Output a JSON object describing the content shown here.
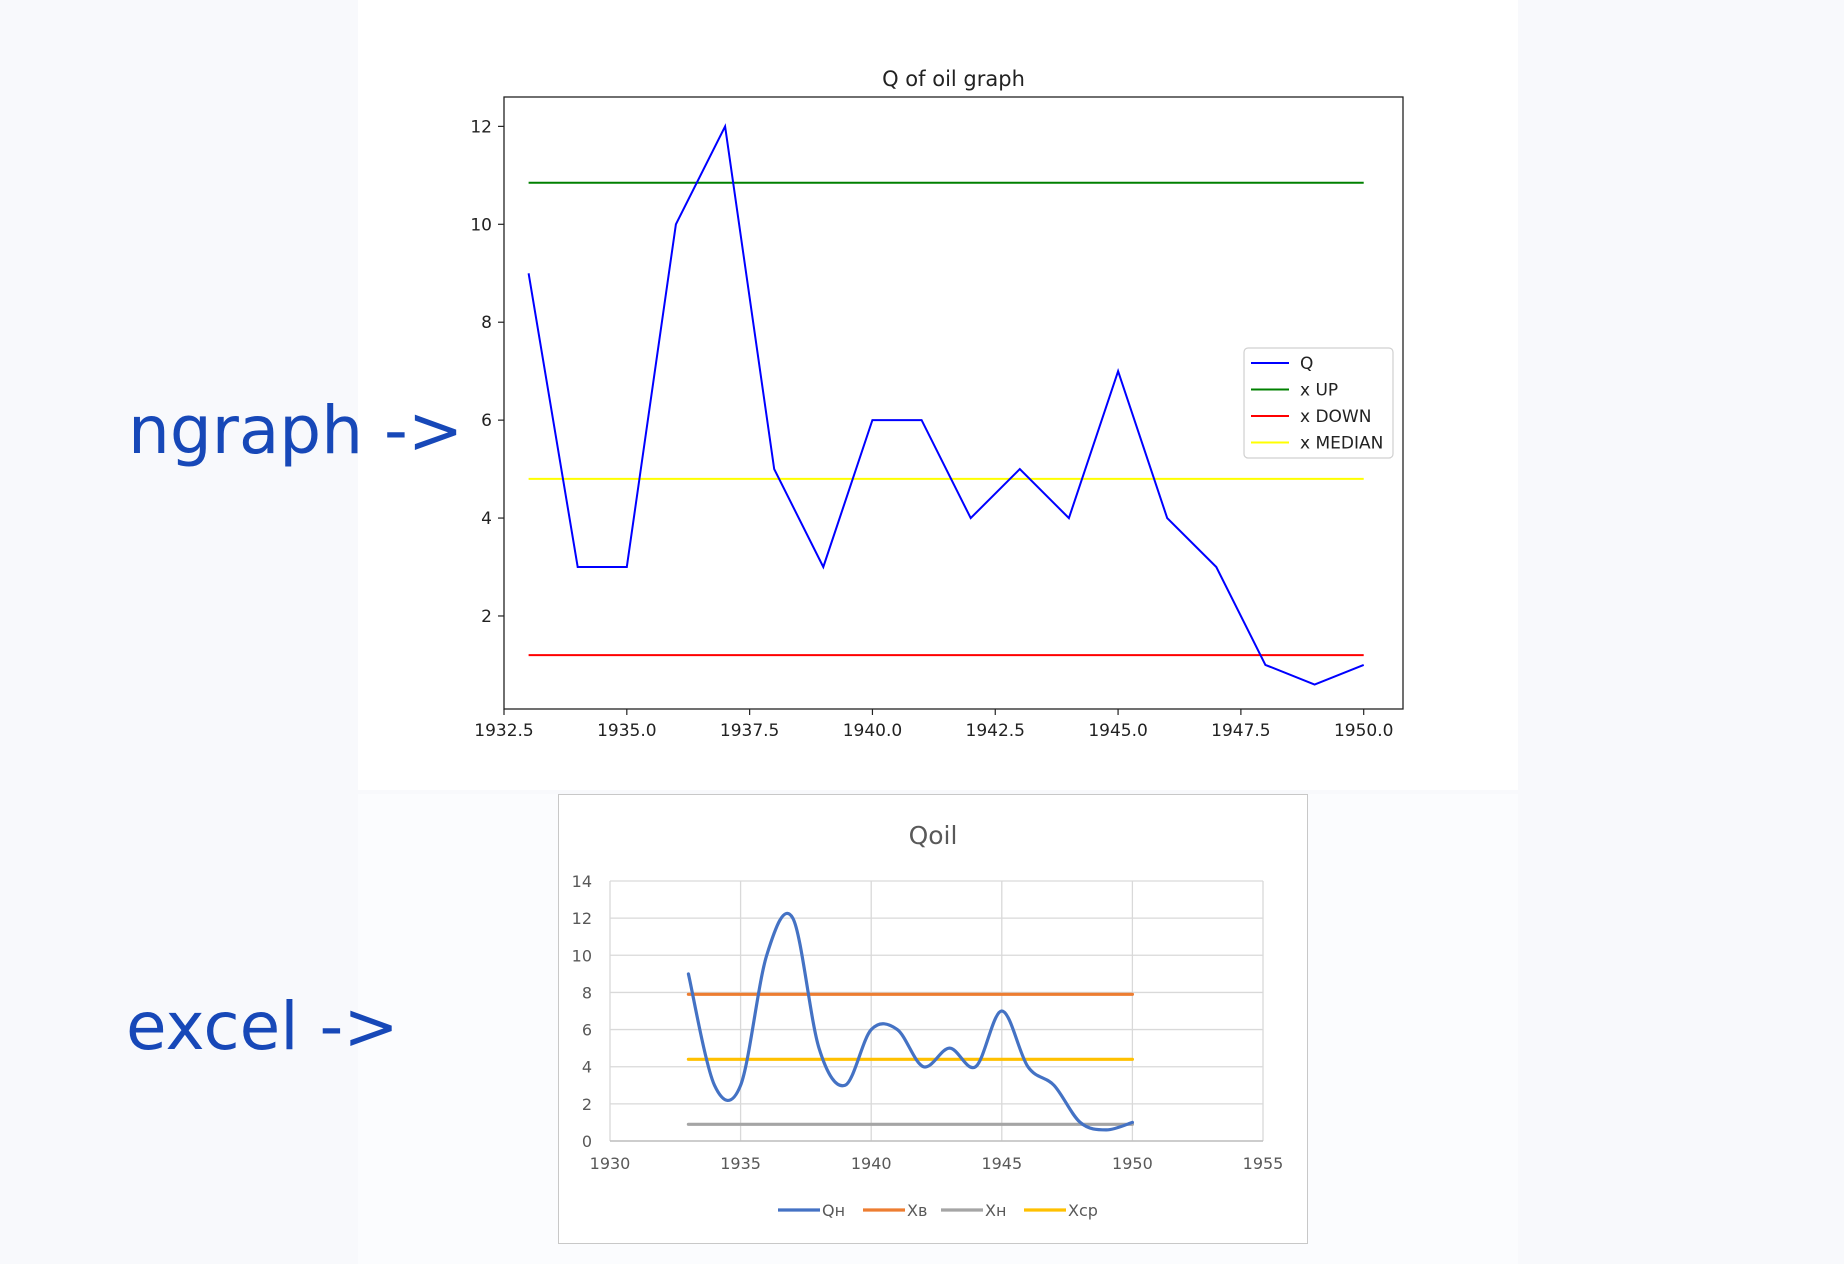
{
  "annotations": {
    "top_label": "ngraph ->",
    "bottom_label": "excel ->"
  },
  "chart_data": [
    {
      "type": "line",
      "title": "Q of oil graph",
      "xlabel": "",
      "ylabel": "",
      "x": [
        1933,
        1934,
        1935,
        1936,
        1937,
        1938,
        1939,
        1940,
        1941,
        1942,
        1943,
        1944,
        1945,
        1946,
        1947,
        1948,
        1949,
        1950
      ],
      "xlim": [
        1932.5,
        1950.8
      ],
      "ylim": [
        0.1,
        12.6
      ],
      "x_ticks": [
        "1932.5",
        "1935.0",
        "1937.5",
        "1940.0",
        "1942.5",
        "1945.0",
        "1947.5",
        "1950.0"
      ],
      "y_ticks": [
        "2",
        "4",
        "6",
        "8",
        "10",
        "12"
      ],
      "grid": false,
      "legend_position": "center-right",
      "series": [
        {
          "name": "Q",
          "color": "#0000ff",
          "values": [
            9,
            3,
            3,
            10,
            12,
            5,
            3,
            6,
            6,
            4,
            5,
            4,
            7,
            4,
            3,
            1,
            0.6,
            1
          ]
        },
        {
          "name": "x UP",
          "color": "#008000",
          "values": [
            10.85,
            10.85,
            10.85,
            10.85,
            10.85,
            10.85,
            10.85,
            10.85,
            10.85,
            10.85,
            10.85,
            10.85,
            10.85,
            10.85,
            10.85,
            10.85,
            10.85,
            10.85
          ]
        },
        {
          "name": "x DOWN",
          "color": "#ff0000",
          "values": [
            1.2,
            1.2,
            1.2,
            1.2,
            1.2,
            1.2,
            1.2,
            1.2,
            1.2,
            1.2,
            1.2,
            1.2,
            1.2,
            1.2,
            1.2,
            1.2,
            1.2,
            1.2
          ]
        },
        {
          "name": "x MEDIAN",
          "color": "#ffff00",
          "values": [
            4.8,
            4.8,
            4.8,
            4.8,
            4.8,
            4.8,
            4.8,
            4.8,
            4.8,
            4.8,
            4.8,
            4.8,
            4.8,
            4.8,
            4.8,
            4.8,
            4.8,
            4.8
          ]
        }
      ]
    },
    {
      "type": "line",
      "title": "Qoil",
      "xlabel": "",
      "ylabel": "",
      "x": [
        1933,
        1934,
        1935,
        1936,
        1937,
        1938,
        1939,
        1940,
        1941,
        1942,
        1943,
        1944,
        1945,
        1946,
        1947,
        1948,
        1949,
        1950
      ],
      "xlim": [
        1930,
        1955
      ],
      "ylim": [
        0,
        14
      ],
      "x_ticks": [
        "1930",
        "1935",
        "1940",
        "1945",
        "1950",
        "1955"
      ],
      "y_ticks": [
        "0",
        "2",
        "4",
        "6",
        "8",
        "10",
        "12",
        "14"
      ],
      "grid": true,
      "smooth": true,
      "legend_position": "bottom",
      "series": [
        {
          "name": "Qн",
          "color": "#4472c4",
          "values": [
            9,
            3,
            3,
            10,
            12,
            5,
            3,
            6,
            6,
            4,
            5,
            4,
            7,
            4,
            3,
            1,
            0.6,
            1
          ]
        },
        {
          "name": "Xв",
          "color": "#ed7d31",
          "values": [
            7.9,
            7.9,
            7.9,
            7.9,
            7.9,
            7.9,
            7.9,
            7.9,
            7.9,
            7.9,
            7.9,
            7.9,
            7.9,
            7.9,
            7.9,
            7.9,
            7.9,
            7.9
          ]
        },
        {
          "name": "Xн",
          "color": "#a5a5a5",
          "values": [
            0.9,
            0.9,
            0.9,
            0.9,
            0.9,
            0.9,
            0.9,
            0.9,
            0.9,
            0.9,
            0.9,
            0.9,
            0.9,
            0.9,
            0.9,
            0.9,
            0.9,
            0.9
          ]
        },
        {
          "name": "Xср",
          "color": "#ffc000",
          "values": [
            4.4,
            4.4,
            4.4,
            4.4,
            4.4,
            4.4,
            4.4,
            4.4,
            4.4,
            4.4,
            4.4,
            4.4,
            4.4,
            4.4,
            4.4,
            4.4,
            4.4,
            4.4
          ]
        }
      ]
    }
  ]
}
